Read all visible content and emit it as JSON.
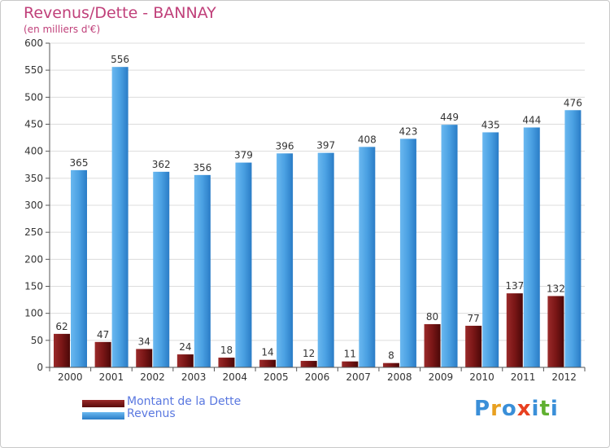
{
  "chart_data": {
    "type": "bar",
    "title": "Revenus/Dette - BANNAY",
    "subtitle": "(en milliers d'€)",
    "categories": [
      "2000",
      "2001",
      "2002",
      "2003",
      "2004",
      "2005",
      "2006",
      "2007",
      "2008",
      "2009",
      "2010",
      "2011",
      "2012"
    ],
    "series": [
      {
        "name": "Montant de la Dette",
        "color": "#7b1a1a",
        "values": [
          62,
          47,
          34,
          24,
          18,
          14,
          12,
          11,
          8,
          80,
          77,
          137,
          132
        ]
      },
      {
        "name": "Revenus",
        "color": "#4a9fe0",
        "values": [
          365,
          556,
          362,
          356,
          379,
          396,
          397,
          408,
          423,
          449,
          435,
          444,
          476
        ]
      }
    ],
    "ylim": [
      0,
      600
    ],
    "yticks": [
      0,
      50,
      100,
      150,
      200,
      250,
      300,
      350,
      400,
      450,
      500,
      550,
      600
    ],
    "grid": true,
    "legend_position": "bottom-left"
  },
  "logo": {
    "letters": [
      "P",
      "r",
      "o",
      "x",
      "i",
      "t",
      "i"
    ],
    "colors": [
      "#3a8fd8",
      "#e8a020",
      "#3a8fd8",
      "#e84020",
      "#3a8fd8",
      "#60b030",
      "#3a8fd8"
    ]
  }
}
